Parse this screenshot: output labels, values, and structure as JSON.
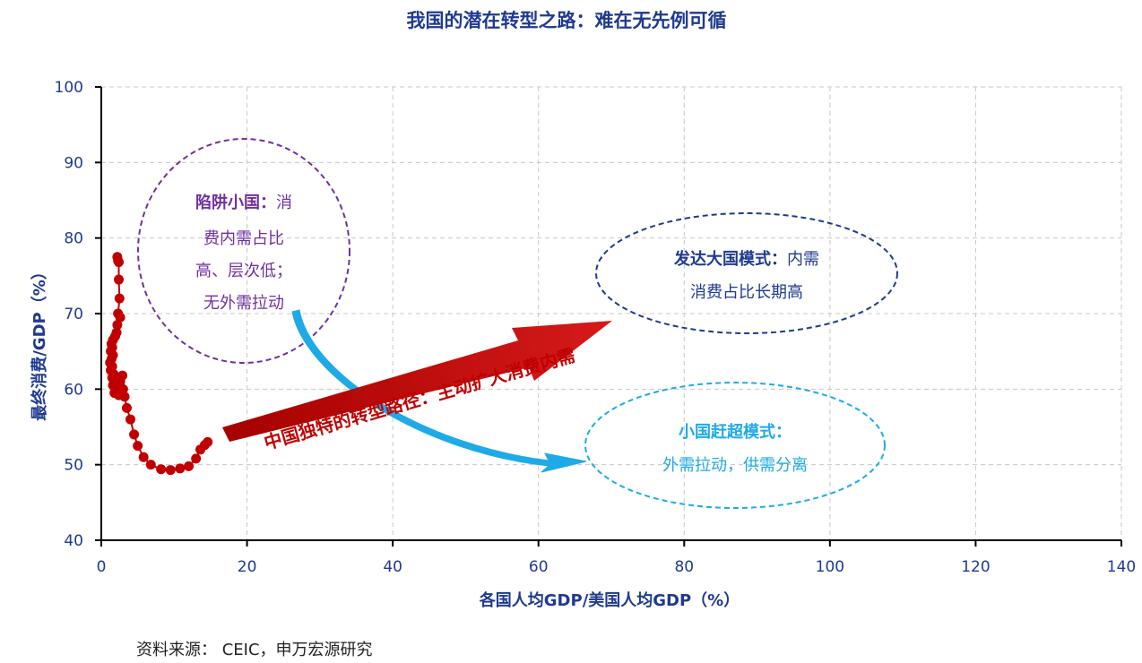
{
  "chart_data": {
    "type": "scatter",
    "title": "我国的潜在转型之路：难在无先例可循",
    "xlabel": "各国人均GDP/美国人均GDP（%）",
    "ylabel": "最终消费/GDP（%）",
    "xlim": [
      0,
      140
    ],
    "ylim": [
      40,
      100
    ],
    "xticks": [
      "0",
      "20",
      "40",
      "60",
      "80",
      "100",
      "120",
      "140"
    ],
    "yticks": [
      "40",
      "50",
      "60",
      "70",
      "80",
      "90",
      "100"
    ],
    "grid": true,
    "series": [
      {
        "color": "#c00000",
        "points": [
          [
            2.2,
            77.5
          ],
          [
            2.3,
            77.0
          ],
          [
            2.4,
            76.8
          ],
          [
            2.4,
            74.5
          ],
          [
            2.5,
            72.0
          ],
          [
            2.3,
            70.0
          ],
          [
            2.6,
            69.5
          ],
          [
            2.2,
            68.5
          ],
          [
            2.1,
            67.5
          ],
          [
            1.9,
            67.0
          ],
          [
            1.6,
            66.5
          ],
          [
            1.4,
            66.0
          ],
          [
            1.5,
            65.5
          ],
          [
            1.3,
            65.0
          ],
          [
            1.6,
            64.5
          ],
          [
            1.4,
            64.0
          ],
          [
            1.2,
            63.5
          ],
          [
            1.5,
            63.0
          ],
          [
            1.3,
            62.5
          ],
          [
            1.7,
            62.0
          ],
          [
            1.5,
            61.5
          ],
          [
            1.8,
            61.0
          ],
          [
            1.6,
            60.5
          ],
          [
            2.0,
            60.0
          ],
          [
            1.8,
            59.5
          ],
          [
            2.4,
            59.2
          ],
          [
            2.8,
            60.0
          ],
          [
            2.6,
            61.0
          ],
          [
            2.9,
            61.8
          ],
          [
            3.0,
            60.0
          ],
          [
            3.2,
            59.0
          ],
          [
            3.5,
            57.5
          ],
          [
            4.0,
            56.0
          ],
          [
            4.5,
            54.0
          ],
          [
            5.0,
            52.5
          ],
          [
            5.8,
            51.0
          ],
          [
            6.8,
            50.0
          ],
          [
            8.2,
            49.4
          ],
          [
            9.5,
            49.3
          ],
          [
            10.8,
            49.5
          ],
          [
            12.0,
            49.8
          ],
          [
            13.0,
            50.8
          ],
          [
            13.6,
            52.0
          ],
          [
            14.2,
            52.6
          ],
          [
            14.6,
            53.0
          ]
        ]
      }
    ],
    "annotations": [
      {
        "title": "陷阱小国：",
        "lines": [
          "消",
          "费内需占比",
          "高、层次低；",
          "无外需拉动"
        ],
        "color": "#7030a0"
      },
      {
        "title": "发达大国模式：",
        "lines": [
          "内需",
          "消费占比长期高"
        ],
        "color": "#1f3a8f"
      },
      {
        "title": "小国赶超模式：",
        "lines": [
          "外需拉动，供需分离"
        ],
        "color": "#1eaae7"
      },
      {
        "text": "中国独特的转型路径：主动扩大消费内需",
        "color": "#c00000"
      }
    ]
  },
  "source_text": "资料来源：  CEIC，申万宏源研究"
}
